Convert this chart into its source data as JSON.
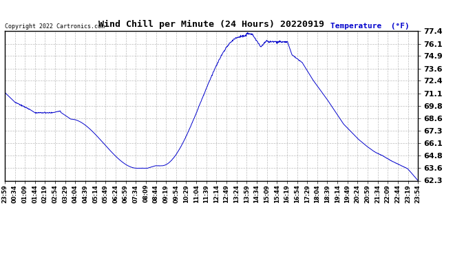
{
  "title": "Wind Chill per Minute (24 Hours) 20220919",
  "copyright_text": "Copyright 2022 Cartronics.com",
  "legend_label": "Temperature  (°F)",
  "ylim": [
    62.3,
    77.4
  ],
  "yticks": [
    62.3,
    63.6,
    64.8,
    66.1,
    67.3,
    68.6,
    69.8,
    71.1,
    72.4,
    73.6,
    74.9,
    76.1,
    77.4
  ],
  "line_color": "#0000cc",
  "background_color": "#ffffff",
  "grid_color": "#aaaaaa",
  "title_color": "#000000",
  "legend_color": "#0000cc",
  "x_labels": [
    "23:59",
    "00:34",
    "01:09",
    "01:44",
    "02:19",
    "02:54",
    "03:29",
    "04:04",
    "04:39",
    "05:14",
    "05:49",
    "06:24",
    "06:59",
    "07:34",
    "08:09",
    "08:44",
    "09:19",
    "09:54",
    "10:29",
    "11:04",
    "11:39",
    "12:14",
    "12:49",
    "13:24",
    "13:59",
    "14:34",
    "15:09",
    "15:44",
    "16:19",
    "16:54",
    "17:29",
    "18:04",
    "18:39",
    "19:14",
    "19:49",
    "20:24",
    "20:59",
    "21:34",
    "22:09",
    "22:44",
    "23:19",
    "23:54"
  ]
}
